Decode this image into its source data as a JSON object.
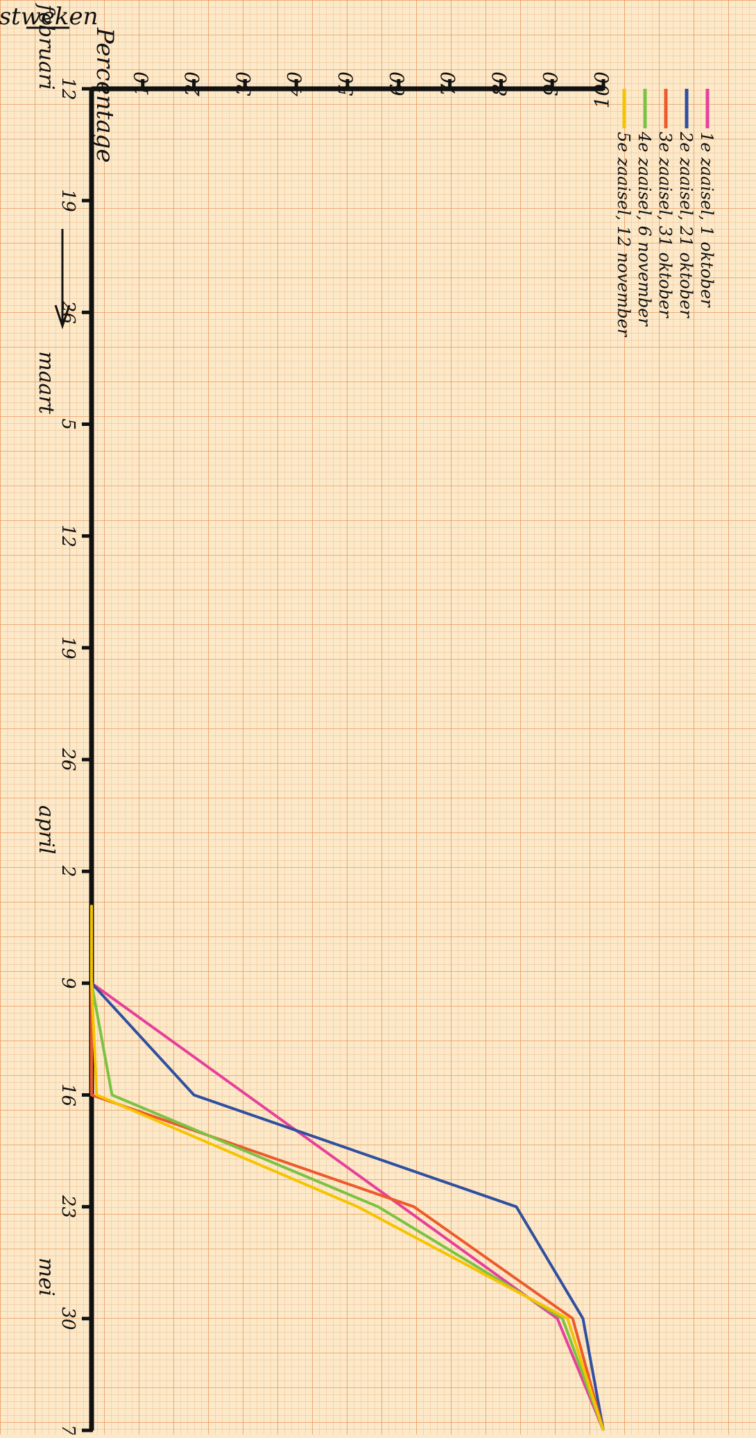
{
  "chart_data": {
    "type": "line",
    "title": "",
    "ylabel": "Percentage",
    "xlabel": "Oogstweken",
    "ylim": [
      0,
      100
    ],
    "y_ticks": [
      "10",
      "20",
      "30",
      "40",
      "50",
      "60",
      "70",
      "80",
      "90",
      "100"
    ],
    "x": [
      "12",
      "19",
      "26",
      "5",
      "12",
      "19",
      "26",
      "2",
      "9",
      "16",
      "23",
      "30",
      "7"
    ],
    "month_labels": [
      {
        "label": "februari",
        "at_index": 0
      },
      {
        "label": "maart",
        "at_index": 3
      },
      {
        "label": "april",
        "at_index": 7
      },
      {
        "label": "mei",
        "at_index": 11
      }
    ],
    "legend_placement": "top-right",
    "grid": true,
    "colors": {
      "paper": "#fbe9c9",
      "grid_fine": "#f2b98a",
      "grid_major": "#e9985a",
      "axis": "#111111"
    },
    "series": [
      {
        "name": "1e zaaisel, 1 oktober",
        "color": "#e6409a",
        "points": [
          [
            7.3,
            0
          ],
          [
            8,
            0
          ],
          [
            11,
            91
          ],
          [
            12,
            100
          ]
        ]
      },
      {
        "name": "2e zaaisel, 21 oktober",
        "color": "#2f4fa0",
        "points": [
          [
            7.3,
            0
          ],
          [
            8,
            0
          ],
          [
            9,
            20
          ],
          [
            10,
            83
          ],
          [
            11,
            96
          ],
          [
            12,
            100
          ]
        ]
      },
      {
        "name": "3e zaaisel, 31 oktober",
        "color": "#ec5a2c",
        "points": [
          [
            7.3,
            0
          ],
          [
            8,
            0
          ],
          [
            9,
            0
          ],
          [
            10,
            63
          ],
          [
            11,
            94
          ],
          [
            12,
            100
          ]
        ]
      },
      {
        "name": "4e zaaisel, 6 november",
        "color": "#7cc242",
        "points": [
          [
            7.3,
            0
          ],
          [
            8,
            0
          ],
          [
            9,
            4
          ],
          [
            10,
            56
          ],
          [
            11,
            92
          ],
          [
            12,
            100
          ]
        ]
      },
      {
        "name": "5e zaaisel, 12 november",
        "color": "#f5c400",
        "points": [
          [
            7.3,
            0
          ],
          [
            8,
            0
          ],
          [
            9,
            1
          ],
          [
            10,
            52
          ],
          [
            11,
            93
          ],
          [
            12,
            100
          ]
        ]
      }
    ]
  }
}
